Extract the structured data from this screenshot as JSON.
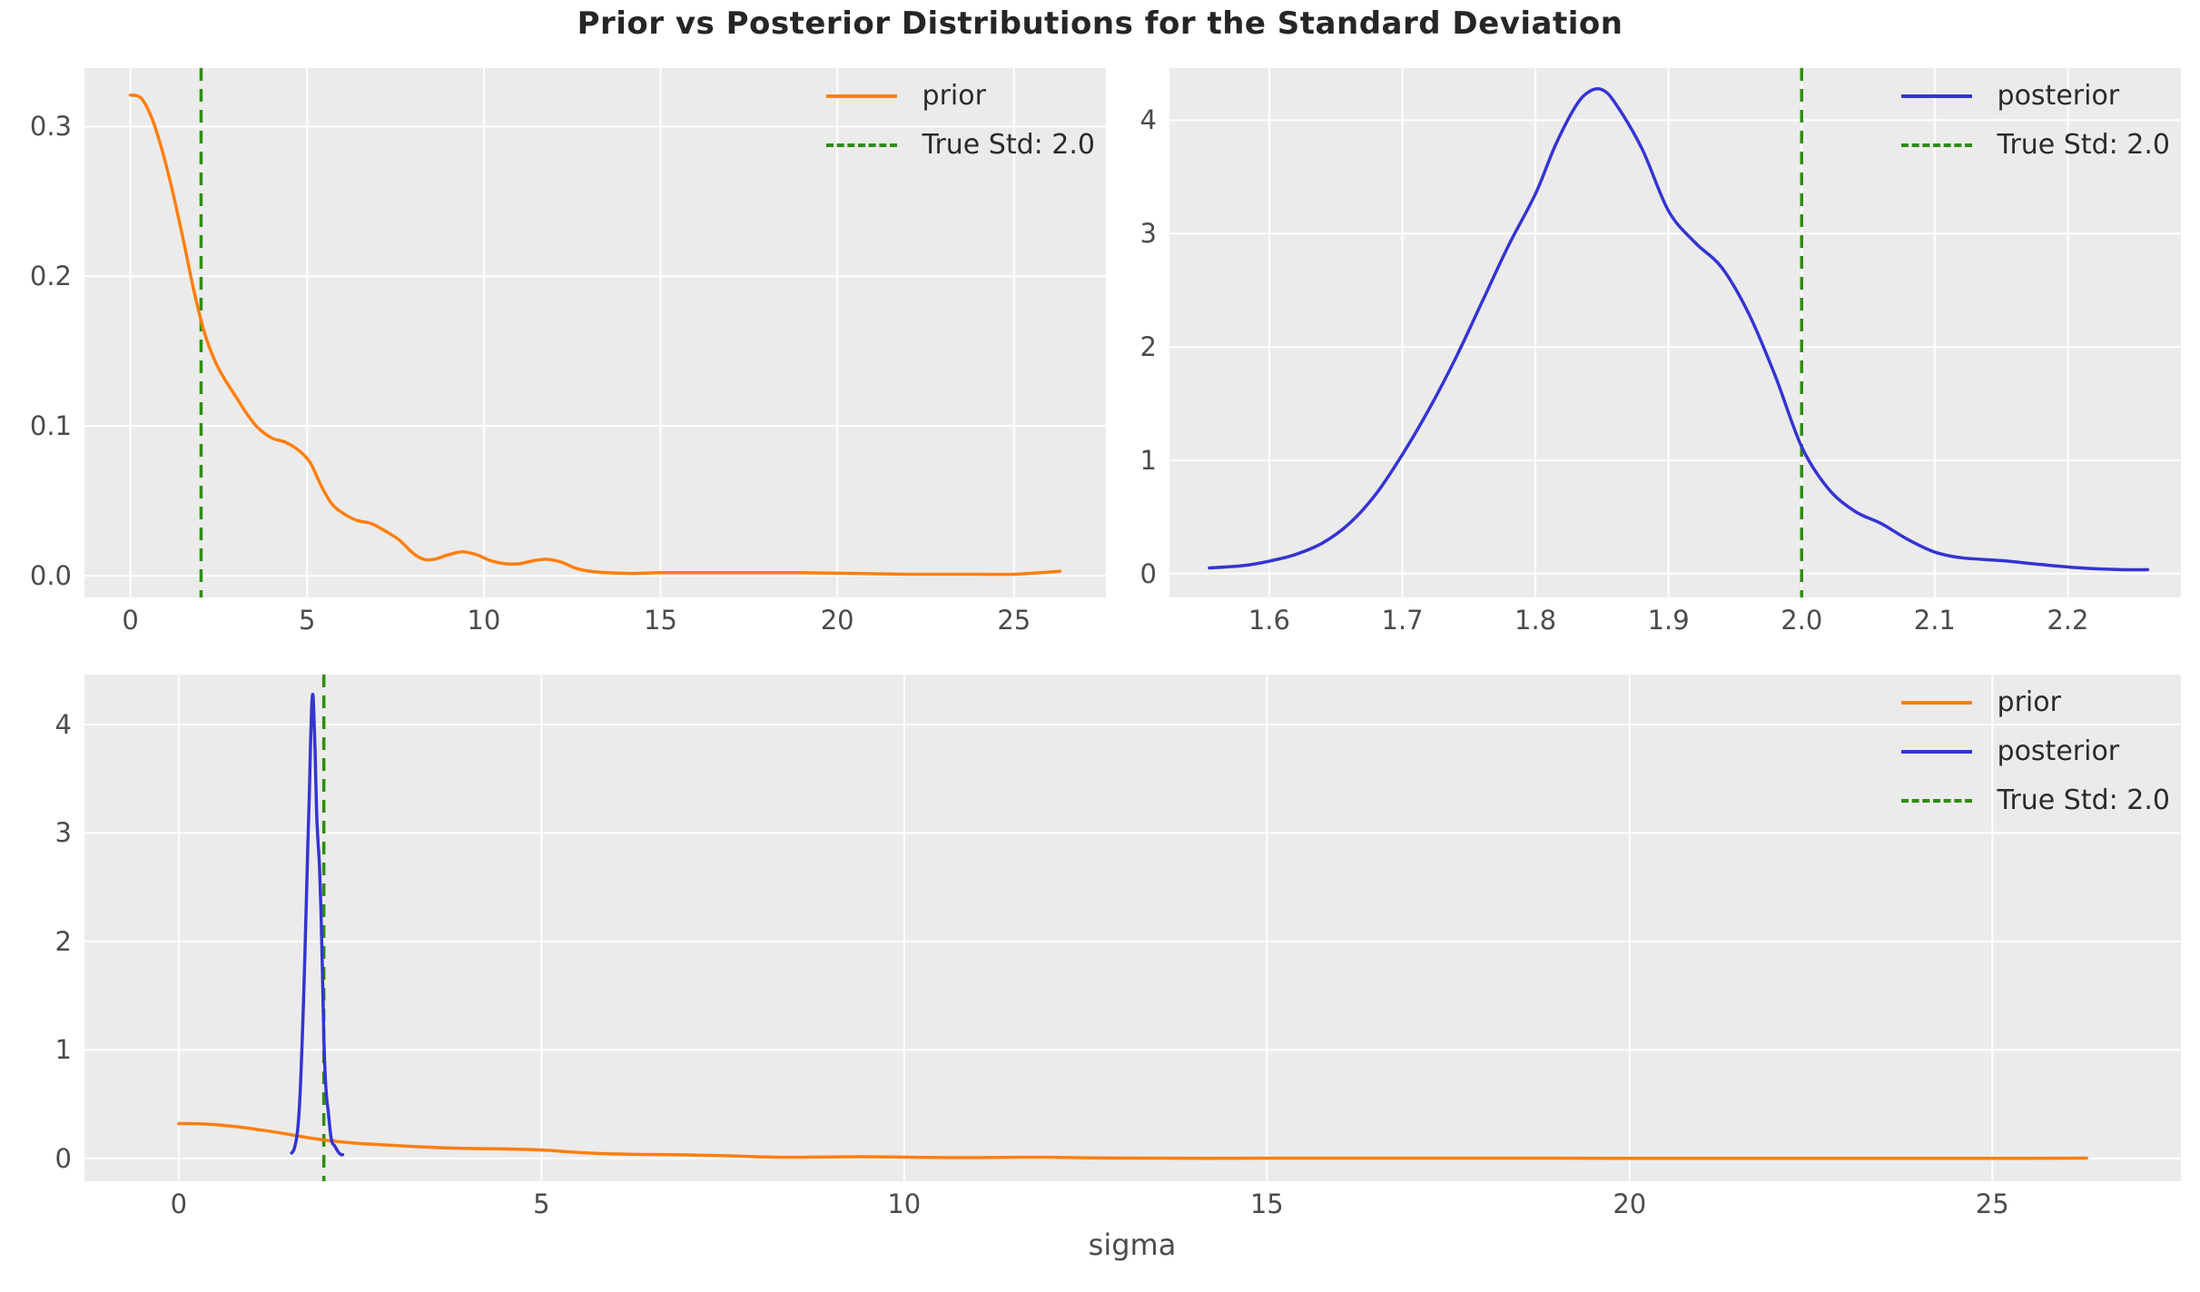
{
  "figure": {
    "title": "Prior vs Posterior Distributions for the Standard Deviation",
    "xlabel": "sigma",
    "background": "#ffffff",
    "panel_background": "#ebebeb",
    "grid_color": "#ffffff",
    "tick_color": "#4c4c4c",
    "title_color": "#262626"
  },
  "colors": {
    "prior": "#ff7f0e",
    "posterior": "#3434d3",
    "true_std": "#2f8c0e"
  },
  "chart_data": [
    {
      "name": "prior-distribution",
      "type": "line",
      "xlim": [
        -1.3,
        27.6
      ],
      "ylim": [
        -0.0145,
        0.339
      ],
      "grid": true,
      "legend_position": "upper right",
      "xticks": {
        "values": [
          0,
          5,
          10,
          15,
          20,
          25
        ],
        "labels": [
          "0",
          "5",
          "10",
          "15",
          "20",
          "25"
        ]
      },
      "yticks": {
        "values": [
          0.0,
          0.1,
          0.2,
          0.3
        ],
        "labels": [
          "0.0",
          "0.1",
          "0.2",
          "0.3"
        ]
      },
      "vline": {
        "x": 2.0,
        "label": "True Std: 2.0",
        "color": "#2f8c0e",
        "linestyle": "dashed"
      },
      "legend": [
        {
          "label": "prior",
          "color": "#ff7f0e",
          "linestyle": "solid"
        },
        {
          "label": "True Std: 2.0",
          "color": "#2f8c0e",
          "linestyle": "dashed"
        }
      ],
      "series": [
        {
          "name": "prior",
          "color": "#ff7f0e",
          "x": [
            0,
            0.3,
            0.6,
            0.9,
            1.2,
            1.5,
            1.8,
            2.1,
            2.4,
            2.7,
            3.0,
            3.3,
            3.6,
            4.0,
            4.4,
            4.8,
            5.1,
            5.4,
            5.7,
            6.0,
            6.4,
            6.8,
            7.2,
            7.6,
            8.0,
            8.3,
            8.6,
            9.0,
            9.4,
            9.8,
            10.2,
            10.6,
            11.0,
            11.4,
            11.8,
            12.2,
            12.6,
            13.0,
            13.5,
            14.2,
            15.0,
            16.0,
            17.5,
            19.0,
            20.5,
            22.0,
            23.5,
            25.0,
            26.3
          ],
          "y": [
            0.321,
            0.319,
            0.306,
            0.284,
            0.256,
            0.224,
            0.19,
            0.162,
            0.143,
            0.13,
            0.119,
            0.108,
            0.099,
            0.092,
            0.089,
            0.083,
            0.075,
            0.06,
            0.048,
            0.042,
            0.037,
            0.035,
            0.03,
            0.024,
            0.015,
            0.011,
            0.011,
            0.014,
            0.016,
            0.014,
            0.01,
            0.008,
            0.008,
            0.01,
            0.011,
            0.009,
            0.005,
            0.003,
            0.002,
            0.0015,
            0.002,
            0.002,
            0.002,
            0.002,
            0.0015,
            0.001,
            0.001,
            0.001,
            0.003
          ]
        }
      ]
    },
    {
      "name": "posterior-distribution",
      "type": "line",
      "xlim": [
        1.525,
        2.285
      ],
      "ylim": [
        -0.21,
        4.46
      ],
      "grid": true,
      "legend_position": "upper right",
      "xticks": {
        "values": [
          1.6,
          1.7,
          1.8,
          1.9,
          2.0,
          2.1,
          2.2
        ],
        "labels": [
          "1.6",
          "1.7",
          "1.8",
          "1.9",
          "2.0",
          "2.1",
          "2.2"
        ]
      },
      "yticks": {
        "values": [
          0,
          1,
          2,
          3,
          4
        ],
        "labels": [
          "0",
          "1",
          "2",
          "3",
          "4"
        ]
      },
      "vline": {
        "x": 2.0,
        "label": "True Std: 2.0",
        "color": "#2f8c0e",
        "linestyle": "dashed"
      },
      "legend": [
        {
          "label": "posterior",
          "color": "#3434d3",
          "linestyle": "solid"
        },
        {
          "label": "True Std: 2.0",
          "color": "#2f8c0e",
          "linestyle": "dashed"
        }
      ],
      "series": [
        {
          "name": "posterior",
          "color": "#3434d3",
          "x": [
            1.555,
            1.58,
            1.6,
            1.62,
            1.64,
            1.66,
            1.68,
            1.7,
            1.72,
            1.74,
            1.76,
            1.78,
            1.8,
            1.815,
            1.83,
            1.84,
            1.85,
            1.86,
            1.88,
            1.9,
            1.92,
            1.94,
            1.96,
            1.98,
            2.0,
            2.02,
            2.04,
            2.06,
            2.08,
            2.1,
            2.12,
            2.15,
            2.18,
            2.21,
            2.24,
            2.26
          ],
          "y": [
            0.05,
            0.07,
            0.11,
            0.17,
            0.27,
            0.44,
            0.7,
            1.05,
            1.45,
            1.9,
            2.4,
            2.9,
            3.35,
            3.78,
            4.12,
            4.25,
            4.27,
            4.15,
            3.75,
            3.2,
            2.92,
            2.7,
            2.3,
            1.75,
            1.12,
            0.75,
            0.55,
            0.44,
            0.3,
            0.19,
            0.14,
            0.115,
            0.08,
            0.05,
            0.035,
            0.035
          ]
        }
      ]
    },
    {
      "name": "prior-vs-posterior-combined",
      "type": "line",
      "xlim": [
        -1.3,
        27.6
      ],
      "ylim": [
        -0.21,
        4.46
      ],
      "grid": true,
      "legend_position": "upper right",
      "xlabel": "sigma",
      "xticks": {
        "values": [
          0,
          5,
          10,
          15,
          20,
          25
        ],
        "labels": [
          "0",
          "5",
          "10",
          "15",
          "20",
          "25"
        ]
      },
      "yticks": {
        "values": [
          0,
          1,
          2,
          3,
          4
        ],
        "labels": [
          "0",
          "1",
          "2",
          "3",
          "4"
        ]
      },
      "vline": {
        "x": 2.0,
        "label": "True Std: 2.0",
        "color": "#2f8c0e",
        "linestyle": "dashed"
      },
      "legend": [
        {
          "label": "prior",
          "color": "#ff7f0e",
          "linestyle": "solid"
        },
        {
          "label": "posterior",
          "color": "#3434d3",
          "linestyle": "solid"
        },
        {
          "label": "True Std: 2.0",
          "color": "#2f8c0e",
          "linestyle": "dashed"
        }
      ],
      "series": [
        {
          "name": "prior",
          "color": "#ff7f0e",
          "x": [
            0,
            0.3,
            0.6,
            0.9,
            1.2,
            1.5,
            1.8,
            2.1,
            2.4,
            2.7,
            3.0,
            3.3,
            3.6,
            4.0,
            4.4,
            4.8,
            5.1,
            5.4,
            5.7,
            6.0,
            6.4,
            6.8,
            7.2,
            7.6,
            8.0,
            8.3,
            8.6,
            9.0,
            9.4,
            9.8,
            10.2,
            10.6,
            11.0,
            11.4,
            11.8,
            12.2,
            12.6,
            13.0,
            13.5,
            14.2,
            15.0,
            16.0,
            17.5,
            19.0,
            20.5,
            22.0,
            23.5,
            25.0,
            26.3
          ],
          "y": [
            0.321,
            0.319,
            0.306,
            0.284,
            0.256,
            0.224,
            0.19,
            0.162,
            0.143,
            0.13,
            0.119,
            0.108,
            0.099,
            0.092,
            0.089,
            0.083,
            0.075,
            0.06,
            0.048,
            0.042,
            0.037,
            0.035,
            0.03,
            0.024,
            0.015,
            0.011,
            0.011,
            0.014,
            0.016,
            0.014,
            0.01,
            0.008,
            0.008,
            0.01,
            0.011,
            0.009,
            0.005,
            0.003,
            0.002,
            0.0015,
            0.002,
            0.002,
            0.002,
            0.002,
            0.0015,
            0.001,
            0.001,
            0.001,
            0.003
          ]
        },
        {
          "name": "posterior",
          "color": "#3434d3",
          "x": [
            1.555,
            1.58,
            1.6,
            1.62,
            1.64,
            1.66,
            1.68,
            1.7,
            1.72,
            1.74,
            1.76,
            1.78,
            1.8,
            1.815,
            1.83,
            1.84,
            1.85,
            1.86,
            1.88,
            1.9,
            1.92,
            1.94,
            1.96,
            1.98,
            2.0,
            2.02,
            2.04,
            2.06,
            2.08,
            2.1,
            2.12,
            2.15,
            2.18,
            2.21,
            2.24,
            2.26
          ],
          "y": [
            0.05,
            0.07,
            0.11,
            0.17,
            0.27,
            0.44,
            0.7,
            1.05,
            1.45,
            1.9,
            2.4,
            2.9,
            3.35,
            3.78,
            4.12,
            4.25,
            4.27,
            4.15,
            3.75,
            3.2,
            2.92,
            2.7,
            2.3,
            1.75,
            1.12,
            0.75,
            0.55,
            0.44,
            0.3,
            0.19,
            0.14,
            0.115,
            0.08,
            0.05,
            0.035,
            0.035
          ]
        }
      ]
    }
  ]
}
